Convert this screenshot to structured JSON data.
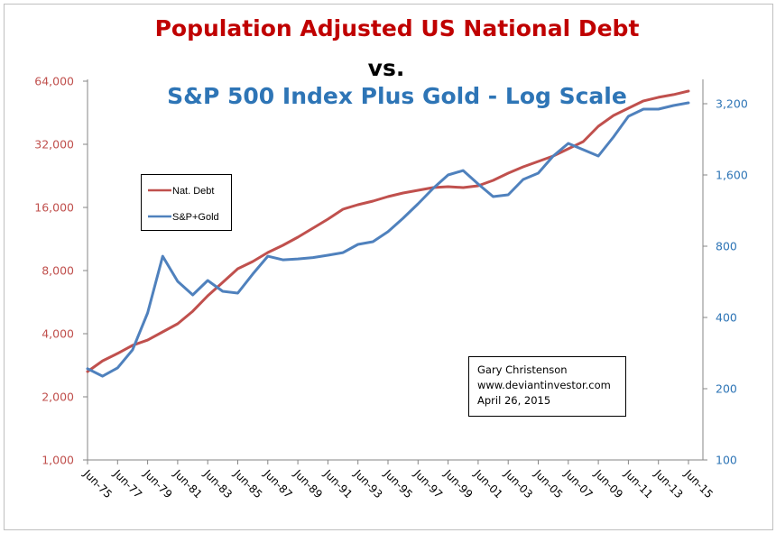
{
  "chart_data": {
    "type": "line",
    "title": "Population Adjusted US National Debt",
    "title_line2": "vs.",
    "title_line3": "S&P 500 Index Plus Gold - Log Scale",
    "xlabel": "",
    "x": [
      1975,
      1976,
      1977,
      1978,
      1979,
      1980,
      1981,
      1982,
      1983,
      1984,
      1985,
      1986,
      1987,
      1988,
      1989,
      1990,
      1991,
      1992,
      1993,
      1994,
      1995,
      1996,
      1997,
      1998,
      1999,
      2000,
      2001,
      2002,
      2003,
      2004,
      2005,
      2006,
      2007,
      2008,
      2009,
      2010,
      2011,
      2012,
      2013,
      2014,
      2015
    ],
    "x_tick_labels": [
      "Jun-75",
      "Jun-77",
      "Jun-79",
      "Jun-81",
      "Jun-83",
      "Jun-85",
      "Jun-87",
      "Jun-89",
      "Jun-91",
      "Jun-93",
      "Jun-95",
      "Jun-97",
      "Jun-99",
      "Jun-01",
      "Jun-03",
      "Jun-05",
      "Jun-07",
      "Jun-09",
      "Jun-11",
      "Jun-13",
      "Jun-15"
    ],
    "x_range": [
      1975,
      2015
    ],
    "left_axis": {
      "scale": "log2",
      "ylim": [
        1000,
        64000
      ],
      "tick_values": [
        1000,
        2000,
        4000,
        8000,
        16000,
        32000,
        64000
      ],
      "tick_labels": [
        "1,000",
        "2,000",
        "4,000",
        "8,000",
        "16,000",
        "32,000",
        "64,000"
      ],
      "color": "#c0504d"
    },
    "right_axis": {
      "scale": "log2",
      "ylim": [
        100,
        3200
      ],
      "tick_values": [
        100,
        200,
        400,
        800,
        1600,
        3200
      ],
      "tick_labels": [
        "100",
        "200",
        "400",
        "800",
        "1,600",
        "3,200"
      ],
      "color": "#2e75b6"
    },
    "series": [
      {
        "name": "Nat. Debt",
        "axis": "left",
        "color": "#c0504d",
        "values": [
          2640,
          2970,
          3220,
          3520,
          3730,
          4080,
          4460,
          5120,
          6060,
          7030,
          8160,
          8830,
          9750,
          10560,
          11540,
          12740,
          14070,
          15690,
          16480,
          17150,
          18020,
          18750,
          19310,
          19890,
          20100,
          19890,
          20300,
          21540,
          23310,
          24990,
          26520,
          28130,
          30450,
          32960,
          39000,
          43900,
          47550,
          51500,
          53600,
          55200,
          57400
        ]
      },
      {
        "name": "S&P+Gold",
        "axis": "right",
        "color": "#4f81bd",
        "values": [
          243,
          226,
          245,
          292,
          418,
          726,
          568,
          498,
          573,
          516,
          507,
          610,
          726,
          701,
          707,
          716,
          733,
          752,
          814,
          836,
          921,
          1050,
          1208,
          1403,
          1600,
          1671,
          1465,
          1296,
          1319,
          1531,
          1628,
          1924,
          2175,
          2045,
          1924,
          2313,
          2830,
          3036,
          3036,
          3145,
          3228
        ]
      }
    ],
    "legend": {
      "placement": "upper-left-inside",
      "entries": [
        "Nat. Debt",
        "S&P+Gold"
      ]
    },
    "annotation": {
      "lines": [
        "Gary Christenson",
        "www.deviantinvestor.com",
        "April 26, 2015"
      ],
      "placement": "lower-right-inside"
    },
    "grid": false
  },
  "colors": {
    "title_red": "#c00000",
    "title_blue": "#2e75b6",
    "axis_gray": "#868686"
  }
}
